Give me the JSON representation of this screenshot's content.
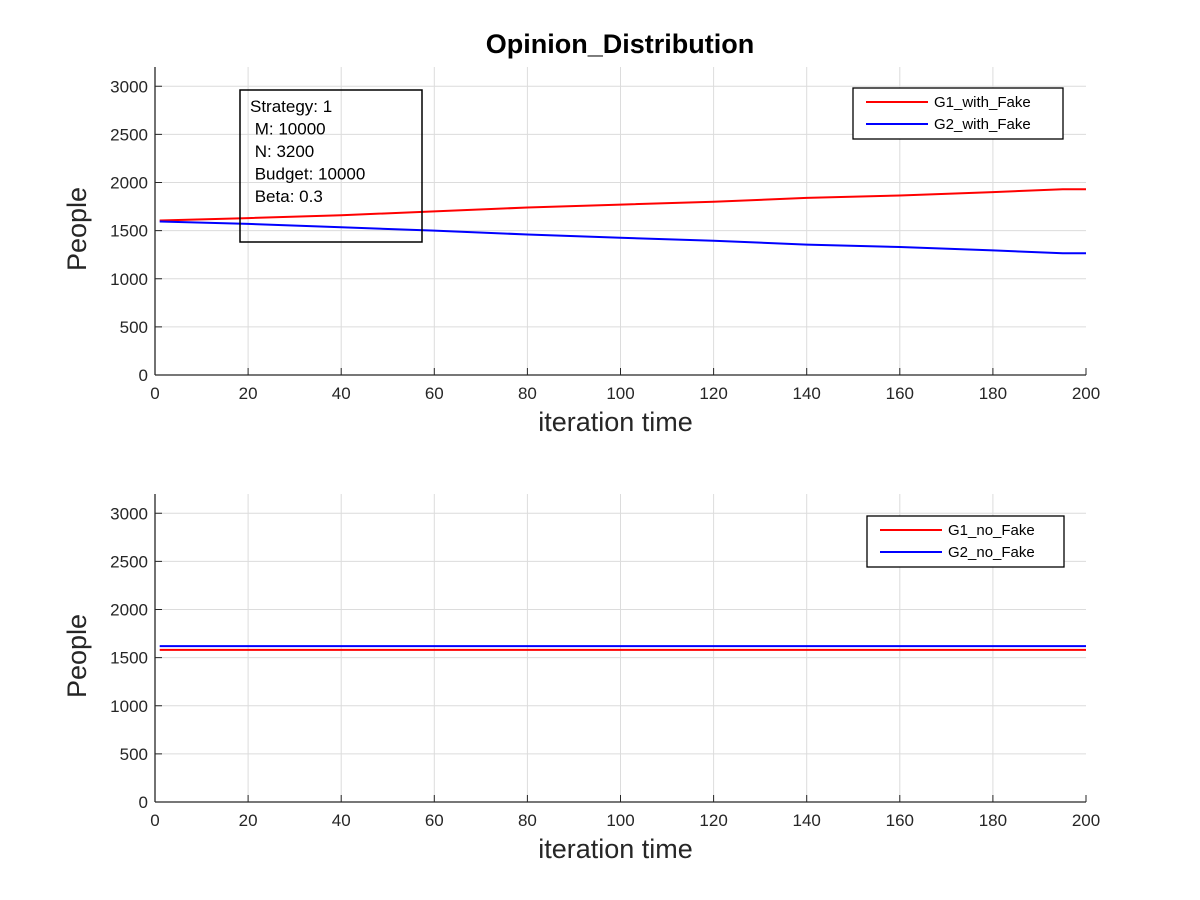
{
  "figure_title": "Opinion_Distribution",
  "chart_data": [
    {
      "type": "line",
      "xlabel": "iteration time",
      "ylabel": "People",
      "xlim": [
        0,
        200
      ],
      "ylim": [
        0,
        3200
      ],
      "xticks": [
        0,
        20,
        40,
        60,
        80,
        100,
        120,
        140,
        160,
        180,
        200
      ],
      "yticks": [
        0,
        500,
        1000,
        1500,
        2000,
        2500,
        3000
      ],
      "grid": true,
      "legend_position": "top-right",
      "series": [
        {
          "name": "G1_with_Fake",
          "color": "#ff0000",
          "x": [
            1,
            20,
            40,
            60,
            80,
            100,
            120,
            140,
            160,
            180,
            195,
            200
          ],
          "y": [
            1605,
            1630,
            1660,
            1700,
            1740,
            1770,
            1800,
            1840,
            1865,
            1900,
            1930,
            1930
          ]
        },
        {
          "name": "G2_with_Fake",
          "color": "#0000ff",
          "x": [
            1,
            20,
            40,
            60,
            80,
            100,
            120,
            140,
            160,
            180,
            195,
            200
          ],
          "y": [
            1595,
            1570,
            1535,
            1500,
            1460,
            1425,
            1395,
            1355,
            1330,
            1295,
            1265,
            1265
          ]
        }
      ],
      "annotation": {
        "lines": [
          "Strategy: 1",
          " M: 10000",
          " N: 3200",
          " Budget: 10000",
          " Beta: 0.3"
        ]
      }
    },
    {
      "type": "line",
      "xlabel": "iteration time",
      "ylabel": "People",
      "xlim": [
        0,
        200
      ],
      "ylim": [
        0,
        3200
      ],
      "xticks": [
        0,
        20,
        40,
        60,
        80,
        100,
        120,
        140,
        160,
        180,
        200
      ],
      "yticks": [
        0,
        500,
        1000,
        1500,
        2000,
        2500,
        3000
      ],
      "grid": true,
      "legend_position": "top-right",
      "series": [
        {
          "name": "G1_no_Fake",
          "color": "#ff0000",
          "x": [
            1,
            50,
            100,
            150,
            200
          ],
          "y": [
            1580,
            1580,
            1580,
            1580,
            1580
          ]
        },
        {
          "name": "G2_no_Fake",
          "color": "#0000ff",
          "x": [
            1,
            50,
            100,
            150,
            200
          ],
          "y": [
            1620,
            1620,
            1620,
            1620,
            1620
          ]
        }
      ]
    }
  ]
}
